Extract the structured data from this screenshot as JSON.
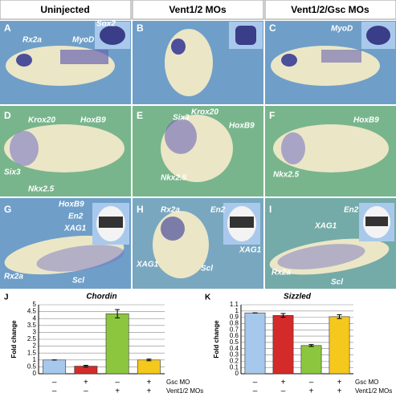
{
  "figure": {
    "columns": [
      "Uninjected",
      "Vent1/2 MOs",
      "Vent1/2/Gsc MOs"
    ],
    "panels": [
      {
        "letter": "A",
        "labels": [
          "Rx2a",
          "MyoD",
          "Sox2"
        ]
      },
      {
        "letter": "B",
        "labels": []
      },
      {
        "letter": "C",
        "labels": [
          "MyoD"
        ]
      },
      {
        "letter": "D",
        "labels": [
          "Krox20",
          "HoxB9",
          "Six3",
          "Nkx2.5"
        ]
      },
      {
        "letter": "E",
        "labels": [
          "Six3",
          "Krox20",
          "HoxB9",
          "Nkx2.5"
        ]
      },
      {
        "letter": "F",
        "labels": [
          "HoxB9",
          "Nkx2.5"
        ]
      },
      {
        "letter": "G",
        "labels": [
          "HoxB9",
          "En2",
          "XAG1",
          "Rx2a",
          "Scl"
        ]
      },
      {
        "letter": "H",
        "labels": [
          "Rx2a",
          "En2",
          "XAG1",
          "Scl",
          "XAG1"
        ]
      },
      {
        "letter": "I",
        "labels": [
          "En2",
          "XAG1",
          "Rx2a",
          "Scl"
        ]
      }
    ]
  },
  "chart_data": [
    {
      "type": "bar",
      "panel": "J",
      "title": "Chordin",
      "y_label": "Fold change",
      "values": [
        1,
        0.55,
        4.35,
        1.0
      ],
      "errors": [
        0,
        0.06,
        0.3,
        0.06
      ],
      "colors": [
        "#a6c8ec",
        "#d42a2a",
        "#8cc63f",
        "#f5c81e"
      ],
      "ylim": [
        0,
        5
      ],
      "yticks": [
        0,
        0.5,
        1,
        1.5,
        2,
        2.5,
        3,
        3.5,
        4,
        4.5,
        5
      ],
      "conditions": [
        {
          "name": "Gsc MO",
          "marks": [
            "–",
            "+",
            "–",
            "+"
          ]
        },
        {
          "name": "Vent1/2 MOs",
          "marks": [
            "–",
            "–",
            "+",
            "+"
          ]
        }
      ]
    },
    {
      "type": "bar",
      "panel": "K",
      "title": "Sizzled",
      "y_label": "Fold change",
      "values": [
        0.97,
        0.93,
        0.45,
        0.91
      ],
      "errors": [
        0,
        0.03,
        0.015,
        0.03
      ],
      "colors": [
        "#a6c8ec",
        "#d42a2a",
        "#8cc63f",
        "#f5c81e"
      ],
      "ylim": [
        0,
        1.1
      ],
      "yticks": [
        0,
        0.1,
        0.2,
        0.3,
        0.4,
        0.5,
        0.6,
        0.7,
        0.8,
        0.9,
        1,
        1.1
      ],
      "conditions": [
        {
          "name": "Gsc MO",
          "marks": [
            "–",
            "+",
            "–",
            "+"
          ]
        },
        {
          "name": "Vent1/2 MOs",
          "marks": [
            "–",
            "–",
            "+",
            "+"
          ]
        }
      ]
    }
  ]
}
